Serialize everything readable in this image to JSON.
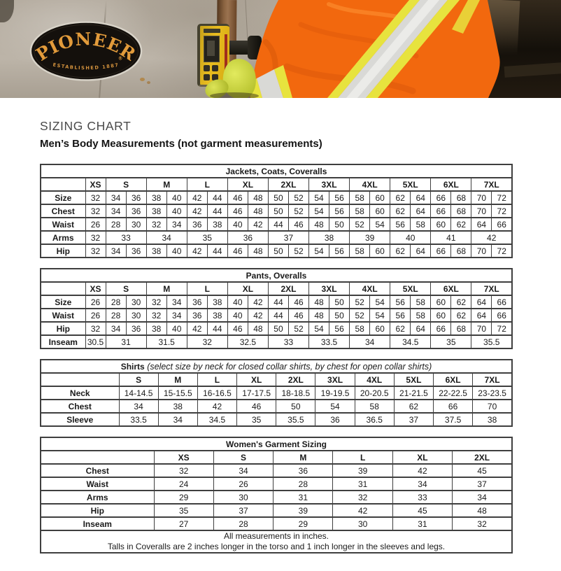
{
  "page": {
    "title": "SIZING CHART",
    "subtitle": "Men’s Body Measurements (not garment measurements)"
  },
  "header": {
    "logo": {
      "brand": "PIONEER",
      "registered": "®",
      "established": "ESTABLISHED 1887"
    }
  },
  "colors": {
    "brand_gold": "#e29b3b",
    "hivis_orange": "#f2680e",
    "reflective_yellow": "#e7e33e",
    "reflective_silver": "#d9d9d6",
    "table_border": "#3f3f3f"
  },
  "tables": [
    {
      "title": "Jackets, Coats, Coveralls",
      "subtitle": "",
      "label_width": 64,
      "columns": [
        [
          "XS",
          1
        ],
        [
          "S",
          2
        ],
        [
          "M",
          2
        ],
        [
          "L",
          2
        ],
        [
          "XL",
          2
        ],
        [
          "2XL",
          2
        ],
        [
          "3XL",
          2
        ],
        [
          "4XL",
          2
        ],
        [
          "5XL",
          2
        ],
        [
          "6XL",
          2
        ],
        [
          "7XL",
          2
        ]
      ],
      "rows": [
        {
          "label": "Size",
          "cells": [
            "32",
            "34",
            "36",
            "38",
            "40",
            "42",
            "44",
            "46",
            "48",
            "50",
            "52",
            "54",
            "56",
            "58",
            "60",
            "62",
            "64",
            "66",
            "68",
            "70",
            "72"
          ]
        },
        {
          "label": "Chest",
          "cells": [
            "32",
            "34",
            "36",
            "38",
            "40",
            "42",
            "44",
            "46",
            "48",
            "50",
            "52",
            "54",
            "56",
            "58",
            "60",
            "62",
            "64",
            "66",
            "68",
            "70",
            "72"
          ]
        },
        {
          "label": "Waist",
          "cells": [
            "26",
            "28",
            "30",
            "32",
            "34",
            "36",
            "38",
            "40",
            "42",
            "44",
            "46",
            "48",
            "50",
            "52",
            "54",
            "56",
            "58",
            "60",
            "62",
            "64",
            "66"
          ]
        },
        {
          "label": "Arms",
          "cells": [
            [
              "32",
              1
            ],
            [
              "33",
              2
            ],
            [
              "34",
              2
            ],
            [
              "35",
              2
            ],
            [
              "36",
              2
            ],
            [
              "37",
              2
            ],
            [
              "38",
              2
            ],
            [
              "39",
              2
            ],
            [
              "40",
              2
            ],
            [
              "41",
              2
            ],
            [
              "42",
              2
            ]
          ]
        },
        {
          "label": "Hip",
          "cells": [
            "32",
            "34",
            "36",
            "38",
            "40",
            "42",
            "44",
            "46",
            "48",
            "50",
            "52",
            "54",
            "56",
            "58",
            "60",
            "62",
            "64",
            "66",
            "68",
            "70",
            "72"
          ]
        }
      ]
    },
    {
      "title": "Pants, Overalls",
      "subtitle": "",
      "label_width": 64,
      "columns": [
        [
          "XS",
          1
        ],
        [
          "S",
          2
        ],
        [
          "M",
          2
        ],
        [
          "L",
          2
        ],
        [
          "XL",
          2
        ],
        [
          "2XL",
          2
        ],
        [
          "3XL",
          2
        ],
        [
          "4XL",
          2
        ],
        [
          "5XL",
          2
        ],
        [
          "6XL",
          2
        ],
        [
          "7XL",
          2
        ]
      ],
      "rows": [
        {
          "label": "Size",
          "cells": [
            "26",
            "28",
            "30",
            "32",
            "34",
            "36",
            "38",
            "40",
            "42",
            "44",
            "46",
            "48",
            "50",
            "52",
            "54",
            "56",
            "58",
            "60",
            "62",
            "64",
            "66"
          ]
        },
        {
          "label": "Waist",
          "cells": [
            "26",
            "28",
            "30",
            "32",
            "34",
            "36",
            "38",
            "40",
            "42",
            "44",
            "46",
            "48",
            "50",
            "52",
            "54",
            "56",
            "58",
            "60",
            "62",
            "64",
            "66"
          ]
        },
        {
          "label": "Hip",
          "cells": [
            "32",
            "34",
            "36",
            "38",
            "40",
            "42",
            "44",
            "46",
            "48",
            "50",
            "52",
            "54",
            "56",
            "58",
            "60",
            "62",
            "64",
            "66",
            "68",
            "70",
            "72"
          ]
        },
        {
          "label": "Inseam",
          "cells": [
            [
              "30.5",
              1
            ],
            [
              "31",
              2
            ],
            [
              "31.5",
              2
            ],
            [
              "32",
              2
            ],
            [
              "32.5",
              2
            ],
            [
              "33",
              2
            ],
            [
              "33.5",
              2
            ],
            [
              "34",
              2
            ],
            [
              "34.5",
              2
            ],
            [
              "35",
              2
            ],
            [
              "35.5",
              2
            ]
          ]
        }
      ]
    },
    {
      "title": "Shirts",
      "subtitle": "(select size by neck for closed collar shirts, by chest for open collar shirts)",
      "label_width": 112,
      "columns": [
        [
          "S",
          1
        ],
        [
          "M",
          1
        ],
        [
          "L",
          1
        ],
        [
          "XL",
          1
        ],
        [
          "2XL",
          1
        ],
        [
          "3XL",
          1
        ],
        [
          "4XL",
          1
        ],
        [
          "5XL",
          1
        ],
        [
          "6XL",
          1
        ],
        [
          "7XL",
          1
        ]
      ],
      "rows": [
        {
          "label": "Neck",
          "cells": [
            "14-14.5",
            "15-15.5",
            "16-16.5",
            "17-17.5",
            "18-18.5",
            "19-19.5",
            "20-20.5",
            "21-21.5",
            "22-22.5",
            "23-23.5"
          ]
        },
        {
          "label": "Chest",
          "cells": [
            "34",
            "38",
            "42",
            "46",
            "50",
            "54",
            "58",
            "62",
            "66",
            "70"
          ]
        },
        {
          "label": "Sleeve",
          "cells": [
            "33.5",
            "34",
            "34.5",
            "35",
            "35.5",
            "36",
            "36.5",
            "37",
            "37.5",
            "38"
          ]
        }
      ]
    },
    {
      "title": "Women's Garment Sizing",
      "subtitle": "",
      "label_width": 162,
      "columns": [
        [
          "XS",
          1
        ],
        [
          "S",
          1
        ],
        [
          "M",
          1
        ],
        [
          "L",
          1
        ],
        [
          "XL",
          1
        ],
        [
          "2XL",
          1
        ]
      ],
      "rows": [
        {
          "label": "Chest",
          "cells": [
            "32",
            "34",
            "36",
            "39",
            "42",
            "45"
          ]
        },
        {
          "label": "Waist",
          "cells": [
            "24",
            "26",
            "28",
            "31",
            "34",
            "37"
          ]
        },
        {
          "label": "Arms",
          "cells": [
            "29",
            "30",
            "31",
            "32",
            "33",
            "34"
          ]
        },
        {
          "label": "Hip",
          "cells": [
            "35",
            "37",
            "39",
            "42",
            "45",
            "48"
          ]
        },
        {
          "label": "Inseam",
          "cells": [
            "27",
            "28",
            "29",
            "30",
            "31",
            "32"
          ]
        }
      ],
      "footer_lines": [
        "All measurements in inches.",
        "Talls in Coveralls are 2 inches longer in the torso and 1 inch longer in the sleeves and legs."
      ]
    }
  ]
}
